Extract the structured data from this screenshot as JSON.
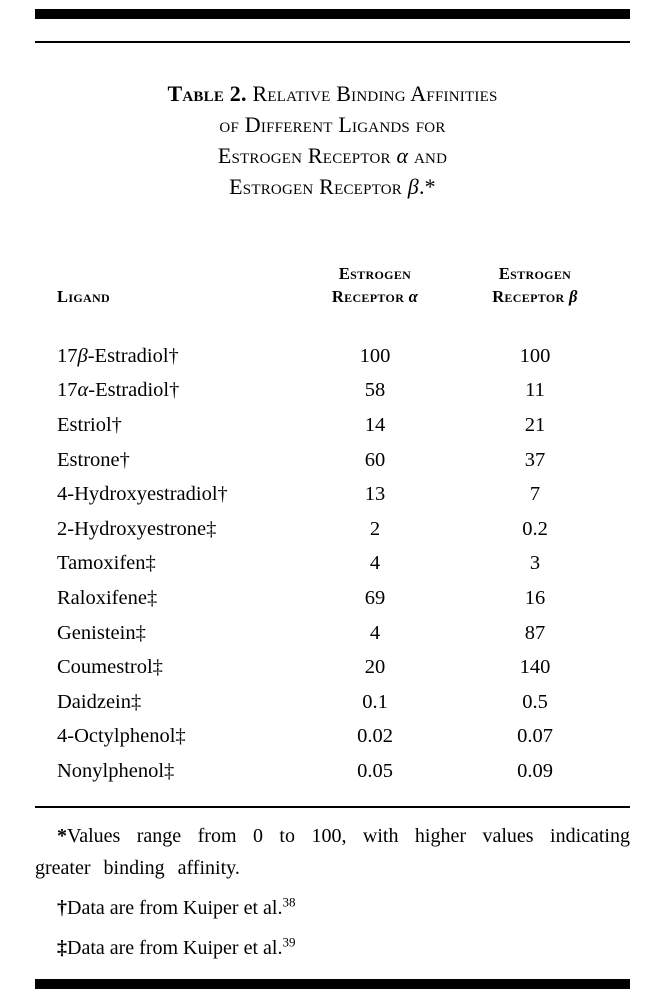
{
  "page": {
    "background": "#ffffff",
    "text_color": "#000000"
  },
  "table": {
    "title": {
      "label": "Table 2.",
      "lines": [
        "Relative Binding Affinities",
        "of Different Ligands for",
        "Estrogen Receptor α and",
        "Estrogen Receptor β.*"
      ]
    },
    "header": {
      "ligand": "Ligand",
      "er_alpha": [
        "Estrogen",
        "Receptor α"
      ],
      "er_beta": [
        "Estrogen",
        "Receptor β"
      ]
    },
    "rows": [
      {
        "ligand": "17β-Estradiol†",
        "er_alpha": "100",
        "er_beta": "100"
      },
      {
        "ligand": "17α-Estradiol†",
        "er_alpha": "58",
        "er_beta": "11"
      },
      {
        "ligand": "Estriol†",
        "er_alpha": "14",
        "er_beta": "21"
      },
      {
        "ligand": "Estrone†",
        "er_alpha": "60",
        "er_beta": "37"
      },
      {
        "ligand": "4-Hydroxyestradiol†",
        "er_alpha": "13",
        "er_beta": "7"
      },
      {
        "ligand": "2-Hydroxyestrone‡",
        "er_alpha": "2",
        "er_beta": "0.2"
      },
      {
        "ligand": "Tamoxifen‡",
        "er_alpha": "4",
        "er_beta": "3"
      },
      {
        "ligand": "Raloxifene‡",
        "er_alpha": "69",
        "er_beta": "16"
      },
      {
        "ligand": "Genistein‡",
        "er_alpha": "4",
        "er_beta": "87"
      },
      {
        "ligand": "Coumestrol‡",
        "er_alpha": "20",
        "er_beta": "140"
      },
      {
        "ligand": "Daidzein‡",
        "er_alpha": "0.1",
        "er_beta": "0.5"
      },
      {
        "ligand": "4-Octylphenol‡",
        "er_alpha": "0.02",
        "er_beta": "0.07"
      },
      {
        "ligand": "Nonylphenol‡",
        "er_alpha": "0.05",
        "er_beta": "0.09"
      }
    ],
    "footnotes": [
      {
        "marker": "*",
        "text": "Values range from 0 to 100, with higher values indicating greater binding affinity.",
        "sup": ""
      },
      {
        "marker": "†",
        "text": "Data are from Kuiper et al.",
        "sup": "38"
      },
      {
        "marker": "‡",
        "text": "Data are from Kuiper et al.",
        "sup": "39"
      }
    ]
  }
}
